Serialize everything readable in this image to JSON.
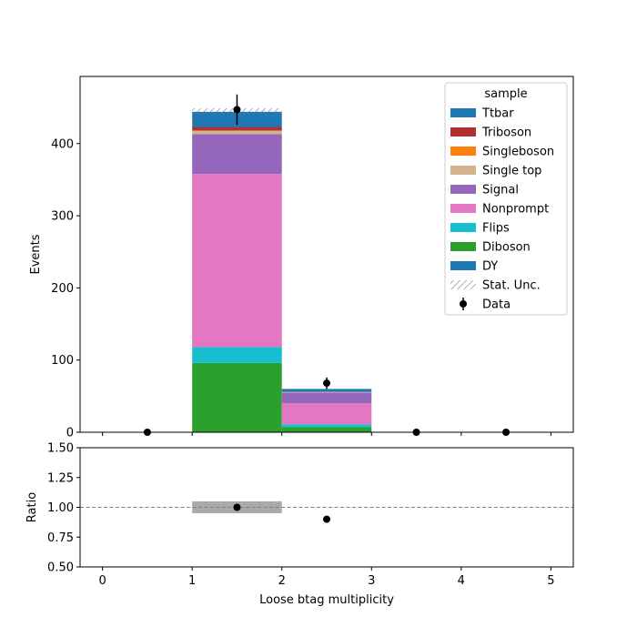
{
  "chart_data": [
    {
      "panel": "main",
      "type": "bar",
      "stacked": true,
      "ylabel": "Events",
      "xlim": [
        -0.25,
        5.25
      ],
      "ylim": [
        0,
        493
      ],
      "yticks": [
        0,
        100,
        200,
        300,
        400
      ],
      "x_bins": [
        [
          0,
          1
        ],
        [
          1,
          2
        ],
        [
          2,
          3
        ],
        [
          3,
          4
        ],
        [
          4,
          5
        ]
      ],
      "series": [
        {
          "name": "Diboson",
          "color": "#2ca02c",
          "values": [
            0,
            96,
            7,
            0,
            0
          ]
        },
        {
          "name": "Flips",
          "color": "#17becf",
          "values": [
            0,
            22,
            4,
            0,
            0
          ]
        },
        {
          "name": "Nonprompt",
          "color": "#e377c2",
          "values": [
            0,
            240,
            29,
            0,
            0
          ]
        },
        {
          "name": "Signal",
          "color": "#9467bd",
          "values": [
            0,
            55,
            15,
            0,
            0
          ]
        },
        {
          "name": "Single top",
          "color": "#d2b48c",
          "values": [
            0,
            5,
            1,
            0,
            0
          ]
        },
        {
          "name": "Singleboson",
          "color": "#ff7f0e",
          "values": [
            0,
            0,
            0,
            0,
            0
          ]
        },
        {
          "name": "Triboson",
          "color": "#b03030",
          "values": [
            0,
            5,
            0,
            0,
            0
          ]
        },
        {
          "name": "DY",
          "color": "#1f77b4",
          "values": [
            0,
            0,
            0,
            0,
            0
          ]
        },
        {
          "name": "Ttbar",
          "color": "#1f77b4",
          "values": [
            0,
            21,
            4,
            0,
            0
          ]
        }
      ],
      "stat_unc": {
        "label": "Stat. Unc.",
        "bins": [
          {
            "x0": 1,
            "x1": 2,
            "lo": 442,
            "hi": 449
          }
        ]
      },
      "data": {
        "label": "Data",
        "points": [
          {
            "x": 0.5,
            "y": 0,
            "err": 0
          },
          {
            "x": 1.5,
            "y": 447,
            "err": 21
          },
          {
            "x": 2.5,
            "y": 68,
            "err": 8
          },
          {
            "x": 3.5,
            "y": 0,
            "err": 0
          },
          {
            "x": 4.5,
            "y": 0,
            "err": 0
          }
        ]
      },
      "legend": {
        "title": "sample",
        "placement": "upper right",
        "entries": [
          "Ttbar",
          "Triboson",
          "Singleboson",
          "Single top",
          "Signal",
          "Nonprompt",
          "Flips",
          "Diboson",
          "DY",
          "Stat. Unc.",
          "Data"
        ]
      }
    },
    {
      "panel": "ratio",
      "type": "scatter",
      "xlabel": "Loose btag multiplicity",
      "ylabel": "Ratio",
      "xlim": [
        -0.25,
        5.25
      ],
      "ylim": [
        0.5,
        1.5
      ],
      "xticks": [
        0,
        1,
        2,
        3,
        4,
        5
      ],
      "yticks": [
        "0.50",
        "0.75",
        "1.00",
        "1.25",
        "1.50"
      ],
      "reference_line": 1.0,
      "unc_band": [
        {
          "x0": 1,
          "x1": 2,
          "lo": 0.95,
          "hi": 1.05
        }
      ],
      "points": [
        {
          "x": 1.5,
          "y": 1.0
        },
        {
          "x": 2.5,
          "y": 0.9
        }
      ]
    }
  ]
}
